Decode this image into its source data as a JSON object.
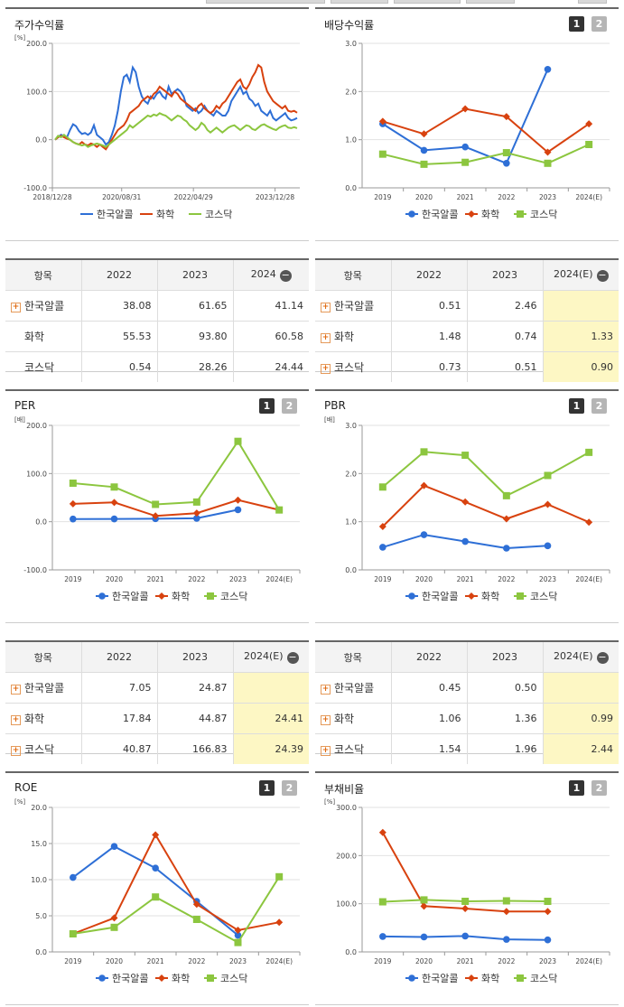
{
  "colors": {
    "stock": "#2e6fd6",
    "chem": "#d8420f",
    "kosdaq": "#8cc63f"
  },
  "legend": [
    "한국알콜",
    "화학",
    "코스닥"
  ],
  "panels": {
    "return": {
      "title": "주가수익률",
      "unit": "[%]",
      "pages": []
    },
    "dividend": {
      "title": "배당수익률",
      "unit": "",
      "pages": [
        "1",
        "2"
      ]
    },
    "per": {
      "title": "PER",
      "unit": "[배]",
      "pages": [
        "1",
        "2"
      ]
    },
    "pbr": {
      "title": "PBR",
      "unit": "[배]",
      "pages": [
        "1",
        "2"
      ]
    },
    "roe": {
      "title": "ROE",
      "unit": "[%]",
      "pages": [
        "1",
        "2"
      ]
    },
    "debt": {
      "title": "부채비율",
      "unit": "[%]",
      "pages": [
        "1",
        "2"
      ]
    }
  },
  "tables": {
    "return": {
      "headers": [
        "항목",
        "2022",
        "2023",
        "2024"
      ],
      "rows": [
        {
          "name": "한국알콜",
          "plus": true,
          "values": [
            "38.08",
            "61.65",
            "41.14"
          ]
        },
        {
          "name": "화학",
          "plus": false,
          "values": [
            "55.53",
            "93.80",
            "60.58"
          ]
        },
        {
          "name": "코스닥",
          "plus": false,
          "values": [
            "0.54",
            "28.26",
            "24.44"
          ]
        }
      ]
    },
    "dividend": {
      "headers": [
        "항목",
        "2022",
        "2023",
        "2024(E)"
      ],
      "rows": [
        {
          "name": "한국알콜",
          "plus": true,
          "values": [
            "0.51",
            "2.46",
            ""
          ]
        },
        {
          "name": "화학",
          "plus": true,
          "values": [
            "1.48",
            "0.74",
            "1.33"
          ]
        },
        {
          "name": "코스닥",
          "plus": true,
          "values": [
            "0.73",
            "0.51",
            "0.90"
          ]
        }
      ]
    },
    "per": {
      "headers": [
        "항목",
        "2022",
        "2023",
        "2024(E)"
      ],
      "rows": [
        {
          "name": "한국알콜",
          "plus": true,
          "values": [
            "7.05",
            "24.87",
            ""
          ]
        },
        {
          "name": "화학",
          "plus": true,
          "values": [
            "17.84",
            "44.87",
            "24.41"
          ]
        },
        {
          "name": "코스닥",
          "plus": true,
          "values": [
            "40.87",
            "166.83",
            "24.39"
          ]
        }
      ]
    },
    "pbr": {
      "headers": [
        "항목",
        "2022",
        "2023",
        "2024(E)"
      ],
      "rows": [
        {
          "name": "한국알콜",
          "plus": true,
          "values": [
            "0.45",
            "0.50",
            ""
          ]
        },
        {
          "name": "화학",
          "plus": true,
          "values": [
            "1.06",
            "1.36",
            "0.99"
          ]
        },
        {
          "name": "코스닥",
          "plus": true,
          "values": [
            "1.54",
            "1.96",
            "2.44"
          ]
        }
      ]
    }
  },
  "chart_data": [
    {
      "id": "return",
      "type": "line",
      "title": "주가수익률",
      "ylabel": "[%]",
      "ylim": [
        -100,
        200
      ],
      "yticks": [
        "200.0",
        "100.0",
        "0.0",
        "-100.0"
      ],
      "xticks": [
        "2018/12/28",
        "2020/08/31",
        "2022/04/29",
        "2023/12/28"
      ],
      "series": [
        {
          "name": "한국알콜",
          "values": [
            0,
            5,
            10,
            8,
            5,
            20,
            32,
            28,
            18,
            12,
            14,
            10,
            15,
            30,
            10,
            5,
            0,
            -10,
            -5,
            10,
            30,
            60,
            100,
            130,
            135,
            120,
            150,
            140,
            110,
            90,
            80,
            75,
            90,
            85,
            95,
            100,
            90,
            85,
            110,
            95,
            100,
            105,
            100,
            90,
            70,
            65,
            60,
            65,
            55,
            60,
            70,
            60,
            55,
            50,
            60,
            55,
            50,
            50,
            60,
            80,
            90,
            100,
            110,
            95,
            100,
            85,
            80,
            70,
            75,
            60,
            55,
            50,
            60,
            45,
            40,
            45,
            50,
            55,
            45,
            40,
            42,
            45
          ]
        },
        {
          "name": "화학",
          "values": [
            0,
            5,
            8,
            5,
            2,
            0,
            -5,
            -8,
            -10,
            -5,
            -10,
            -12,
            -8,
            -10,
            -15,
            -10,
            -15,
            -20,
            -10,
            0,
            10,
            20,
            25,
            30,
            40,
            55,
            60,
            65,
            70,
            80,
            85,
            90,
            85,
            95,
            100,
            110,
            105,
            100,
            95,
            90,
            100,
            95,
            85,
            80,
            75,
            70,
            65,
            60,
            70,
            75,
            65,
            60,
            55,
            60,
            70,
            65,
            75,
            80,
            90,
            100,
            110,
            120,
            125,
            110,
            105,
            115,
            130,
            140,
            155,
            150,
            120,
            100,
            90,
            80,
            75,
            70,
            65,
            70,
            60,
            58,
            60,
            56
          ]
        },
        {
          "name": "코스닥",
          "values": [
            0,
            8,
            5,
            10,
            5,
            0,
            -5,
            -8,
            -10,
            -12,
            -10,
            -15,
            -12,
            -10,
            -8,
            -10,
            -12,
            -15,
            -10,
            -5,
            0,
            5,
            10,
            15,
            20,
            30,
            25,
            30,
            35,
            40,
            45,
            50,
            48,
            52,
            50,
            55,
            52,
            50,
            45,
            40,
            45,
            50,
            48,
            42,
            38,
            30,
            25,
            20,
            25,
            35,
            30,
            20,
            15,
            20,
            25,
            20,
            15,
            20,
            25,
            28,
            30,
            25,
            20,
            25,
            30,
            28,
            22,
            20,
            25,
            30,
            32,
            28,
            25,
            22,
            20,
            25,
            28,
            30,
            25,
            24,
            26,
            24
          ]
        }
      ]
    },
    {
      "id": "dividend",
      "type": "line",
      "title": "배당수익률",
      "ylim": [
        0,
        3
      ],
      "yticks": [
        "3.0",
        "2.0",
        "1.0",
        "0.0"
      ],
      "categories": [
        "2019",
        "2020",
        "2021",
        "2022",
        "2023",
        "2024(E)"
      ],
      "series": [
        {
          "name": "한국알콜",
          "values": [
            1.33,
            0.78,
            0.85,
            0.51,
            2.46,
            null
          ]
        },
        {
          "name": "화학",
          "values": [
            1.38,
            1.12,
            1.64,
            1.48,
            0.74,
            1.33
          ]
        },
        {
          "name": "코스닥",
          "values": [
            0.7,
            0.49,
            0.53,
            0.73,
            0.51,
            0.9
          ]
        }
      ]
    },
    {
      "id": "per",
      "type": "line",
      "title": "PER",
      "ylabel": "[배]",
      "ylim": [
        -100,
        200
      ],
      "yticks": [
        "200.0",
        "100.0",
        "0.0",
        "-100.0"
      ],
      "categories": [
        "2019",
        "2020",
        "2021",
        "2022",
        "2023",
        "2024(E)"
      ],
      "series": [
        {
          "name": "한국알콜",
          "values": [
            5.5,
            5.8,
            6.2,
            7.05,
            24.87,
            null
          ]
        },
        {
          "name": "화학",
          "values": [
            37,
            40,
            12,
            17.84,
            44.87,
            24.41
          ]
        },
        {
          "name": "코스닥",
          "values": [
            80,
            72,
            36,
            40.87,
            166.83,
            24.39
          ]
        }
      ]
    },
    {
      "id": "pbr",
      "type": "line",
      "title": "PBR",
      "ylabel": "[배]",
      "ylim": [
        0,
        3
      ],
      "yticks": [
        "3.0",
        "2.0",
        "1.0",
        "0.0"
      ],
      "categories": [
        "2019",
        "2020",
        "2021",
        "2022",
        "2023",
        "2024(E)"
      ],
      "series": [
        {
          "name": "한국알콜",
          "values": [
            0.47,
            0.73,
            0.59,
            0.45,
            0.5,
            null
          ]
        },
        {
          "name": "화학",
          "values": [
            0.9,
            1.75,
            1.41,
            1.06,
            1.36,
            0.99
          ]
        },
        {
          "name": "코스닥",
          "values": [
            1.72,
            2.45,
            2.38,
            1.54,
            1.96,
            2.44
          ]
        }
      ]
    },
    {
      "id": "roe",
      "type": "line",
      "title": "ROE",
      "ylabel": "[%]",
      "ylim": [
        0,
        20
      ],
      "yticks": [
        "20.0",
        "15.0",
        "10.0",
        "5.0",
        "0.0"
      ],
      "categories": [
        "2019",
        "2020",
        "2021",
        "2022",
        "2023",
        "2024(E)"
      ],
      "series": [
        {
          "name": "한국알콜",
          "values": [
            10.3,
            14.6,
            11.6,
            7.0,
            2.3,
            null
          ]
        },
        {
          "name": "화학",
          "values": [
            2.5,
            4.7,
            16.2,
            6.6,
            3.0,
            4.1
          ]
        },
        {
          "name": "코스닥",
          "values": [
            2.5,
            3.4,
            7.6,
            4.5,
            1.3,
            10.4
          ]
        }
      ]
    },
    {
      "id": "debt",
      "type": "line",
      "title": "부채비율",
      "ylabel": "[%]",
      "ylim": [
        0,
        300
      ],
      "yticks": [
        "300.0",
        "200.0",
        "100.0",
        "0.0"
      ],
      "categories": [
        "2019",
        "2020",
        "2021",
        "2022",
        "2023",
        "2024(E)"
      ],
      "series": [
        {
          "name": "한국알콜",
          "values": [
            32,
            31,
            33,
            26,
            25,
            null
          ]
        },
        {
          "name": "화학",
          "values": [
            248,
            95,
            90,
            84,
            84,
            null
          ]
        },
        {
          "name": "코스닥",
          "values": [
            104,
            108,
            105,
            106,
            105,
            null
          ]
        }
      ]
    }
  ]
}
